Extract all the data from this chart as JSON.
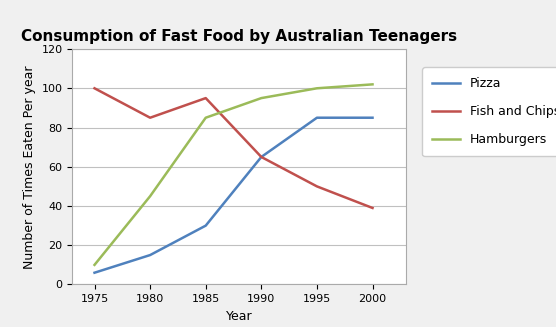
{
  "title": "Consumption of Fast Food by Australian Teenagers",
  "xlabel": "Year",
  "ylabel": "Number of Times Eaten Per year",
  "years": [
    1975,
    1980,
    1985,
    1990,
    1995,
    2000
  ],
  "pizza": [
    6,
    15,
    30,
    65,
    85,
    85
  ],
  "fish_and_chips": [
    100,
    85,
    95,
    65,
    50,
    39
  ],
  "hamburgers": [
    10,
    45,
    85,
    95,
    100,
    102
  ],
  "pizza_color": "#4F81BD",
  "fish_color": "#C0504D",
  "hamburgers_color": "#9BBB59",
  "ylim": [
    0,
    120
  ],
  "xlim": [
    1973,
    2003
  ],
  "xticks": [
    1975,
    1980,
    1985,
    1990,
    1995,
    2000
  ],
  "yticks": [
    0,
    20,
    40,
    60,
    80,
    100,
    120
  ],
  "legend_labels": [
    "Pizza",
    "Fish and Chips",
    "Hamburgers"
  ],
  "line_width": 1.8,
  "title_fontsize": 11,
  "label_fontsize": 9,
  "tick_fontsize": 8,
  "legend_fontsize": 9,
  "bg_color": "#f0f0f0",
  "plot_bg_color": "#ffffff",
  "grid_color": "#c0c0c0"
}
